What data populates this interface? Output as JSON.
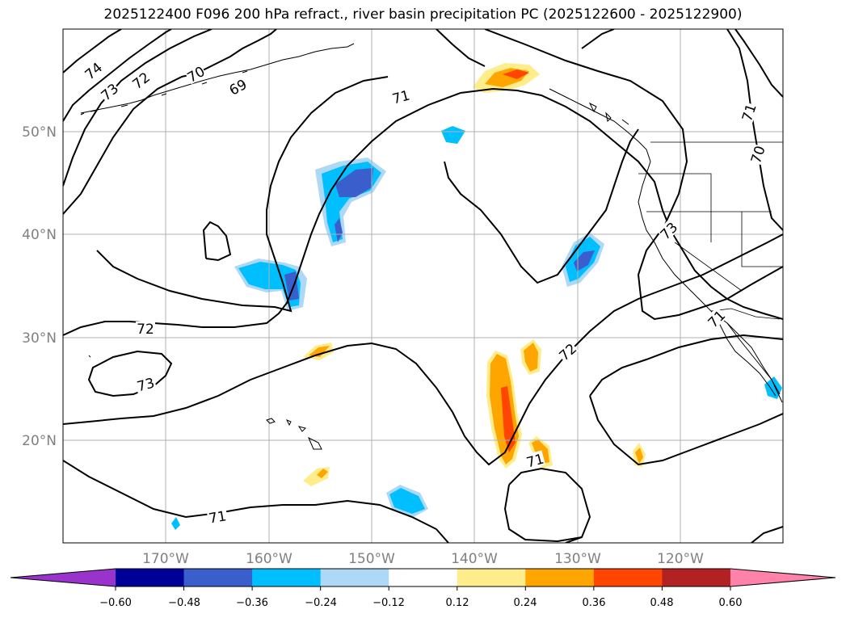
{
  "title": "2025122400 F096 200 hPa refract., river basin precipitation PC (2025122600 - 2025122900)",
  "lat_labels": [
    "50°N",
    "40°N",
    "30°N",
    "20°N"
  ],
  "lon_labels": [
    "170°W",
    "160°W",
    "150°W",
    "140°W",
    "130°W",
    "120°W"
  ],
  "contour_labels": [
    "74",
    "73",
    "72",
    "70",
    "69",
    "71",
    "71",
    "70",
    "73",
    "72",
    "72",
    "71",
    "73",
    "71",
    "71"
  ],
  "colorbar": {
    "ticks": [
      "−0.60",
      "−0.48",
      "−0.36",
      "−0.24",
      "−0.12",
      "0.12",
      "0.24",
      "0.36",
      "0.48",
      "0.60"
    ],
    "colors": [
      "#9933cc",
      "#000099",
      "#3a5fcd",
      "#00bfff",
      "#add8f6",
      "#ffffff",
      "#ffec8b",
      "#ffa500",
      "#ff4500",
      "#b22222",
      "#ff82ab"
    ]
  }
}
